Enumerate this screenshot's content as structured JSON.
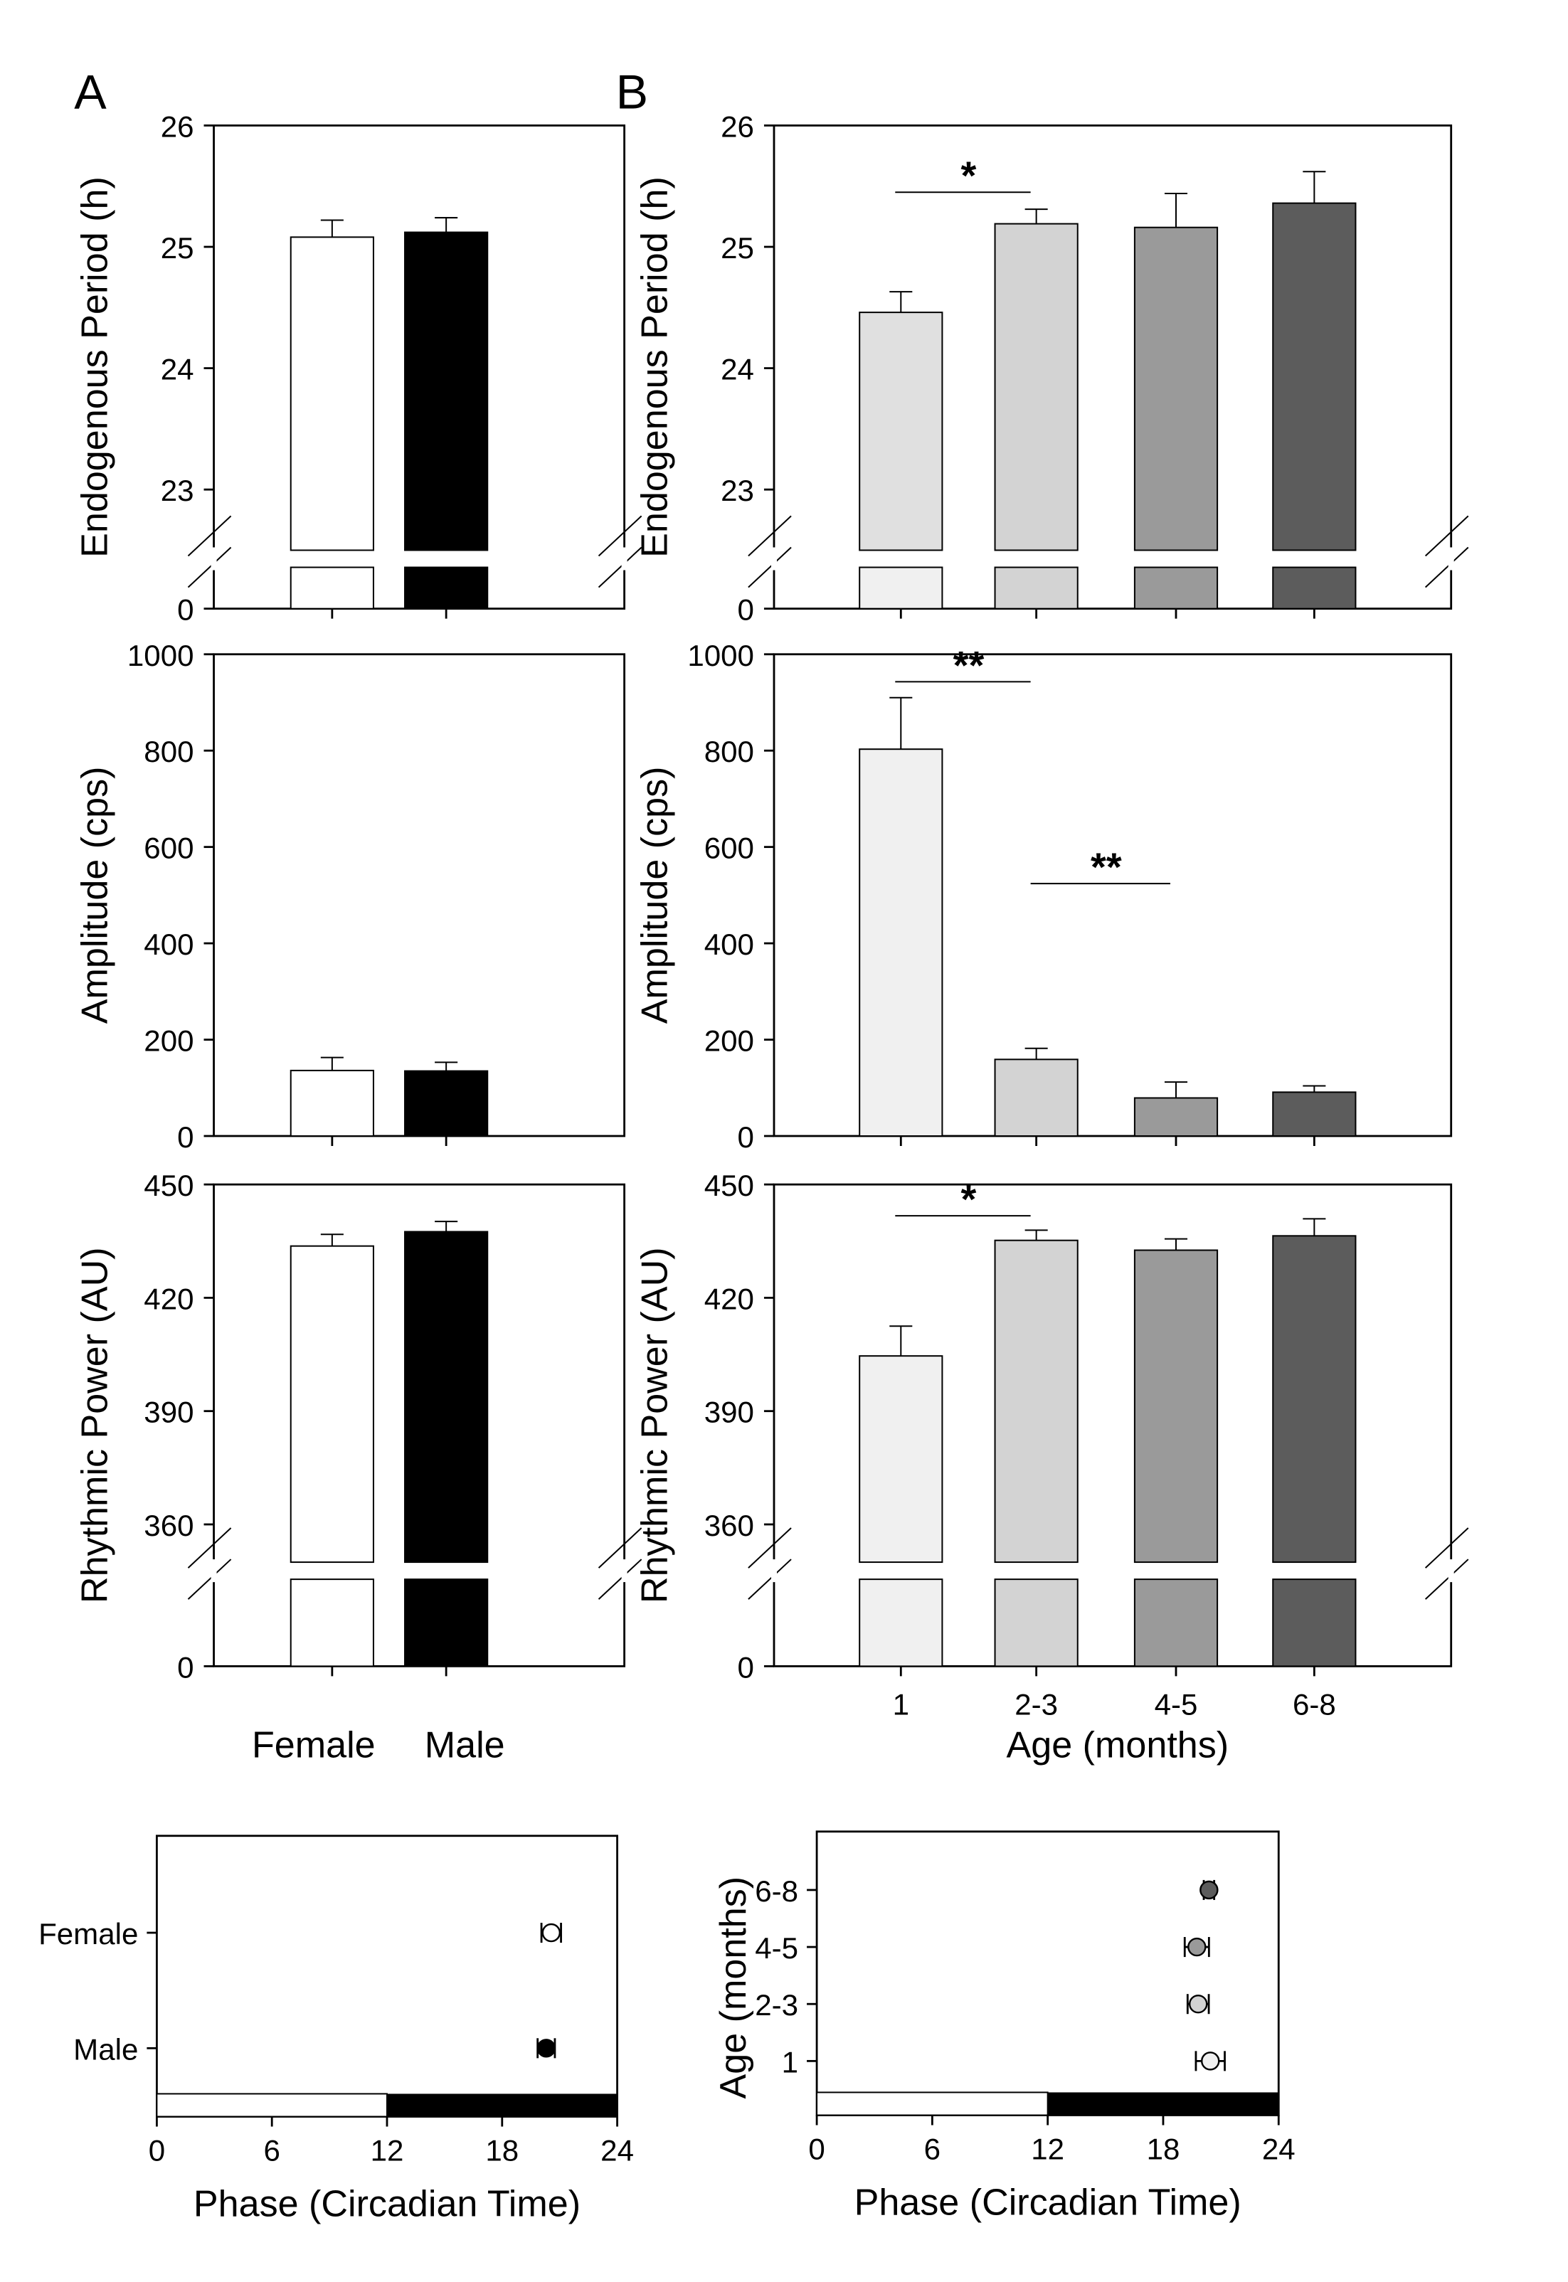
{
  "panel_labels": {
    "a": "A",
    "b": "B"
  },
  "colors": {
    "female": "#ffffff",
    "male": "#000000",
    "age_1": "#f0f0f0",
    "age_1_period_upper": "#e0e0e0",
    "age_2_3": "#d3d3d3",
    "age_4_5": "#9a9a9a",
    "age_6_8": "#5c5c5c",
    "light_phase": "#ffffff",
    "dark_phase": "#000000"
  },
  "labels": {
    "sex_xlabel_female": "Female",
    "sex_xlabel_male": "Male",
    "age_xlabel": "Age (months)",
    "phase_xlabel": "Phase (Circadian Time)",
    "phase_age_ylabel": "Age (months)"
  },
  "chart_data": [
    {
      "id": "A-period",
      "type": "bar",
      "panel": "A",
      "ylabel": "Endogenous Period (h)",
      "categories": [
        "Female",
        "Male"
      ],
      "values": [
        25.08,
        25.12
      ],
      "errors": [
        0.14,
        0.12
      ],
      "ylim": [
        22.5,
        26
      ],
      "yticks": [
        0,
        23,
        24,
        25,
        26
      ],
      "axis_break": true,
      "significance": []
    },
    {
      "id": "B-period",
      "type": "bar",
      "panel": "B",
      "ylabel": "Endogenous Period (h)",
      "categories": [
        "1",
        "2-3",
        "4-5",
        "6-8"
      ],
      "values": [
        24.46,
        25.19,
        25.16,
        25.36
      ],
      "errors": [
        0.17,
        0.12,
        0.28,
        0.26
      ],
      "ylim": [
        22.5,
        26
      ],
      "yticks": [
        0,
        23,
        24,
        25,
        26
      ],
      "axis_break": true,
      "significance": [
        {
          "from": "1",
          "to": "2-3",
          "label": "*",
          "y": 25.45
        }
      ]
    },
    {
      "id": "A-amplitude",
      "type": "bar",
      "panel": "A",
      "ylabel": "Amplitude (cps)",
      "categories": [
        "Female",
        "Male"
      ],
      "values": [
        136,
        135
      ],
      "errors": [
        27,
        18
      ],
      "ylim": [
        0,
        1000
      ],
      "yticks": [
        0,
        200,
        400,
        600,
        800,
        1000
      ],
      "axis_break": false,
      "significance": []
    },
    {
      "id": "B-amplitude",
      "type": "bar",
      "panel": "B",
      "ylabel": "Amplitude (cps)",
      "categories": [
        "1",
        "2-3",
        "4-5",
        "6-8"
      ],
      "values": [
        803,
        159,
        79,
        91
      ],
      "errors": [
        107,
        23,
        33,
        13
      ],
      "ylim": [
        0,
        1000
      ],
      "yticks": [
        0,
        200,
        400,
        600,
        800,
        1000
      ],
      "axis_break": false,
      "significance": [
        {
          "from": "1",
          "to": "2-3",
          "label": "**",
          "y": 943
        },
        {
          "from": "2-3",
          "to": "4-5",
          "label": "**",
          "y": 524
        }
      ]
    },
    {
      "id": "A-power",
      "type": "bar",
      "panel": "A",
      "ylabel": "Rhythmic Power (AU)",
      "categories": [
        "Female",
        "Male"
      ],
      "values": [
        433.7,
        437.5
      ],
      "errors": [
        3.1,
        2.7
      ],
      "ylim": [
        350,
        450
      ],
      "yticks": [
        0,
        360,
        390,
        420,
        450
      ],
      "axis_break": true,
      "xlabels": [
        "Female",
        "Male"
      ],
      "significance": []
    },
    {
      "id": "B-power",
      "type": "bar",
      "panel": "B",
      "ylabel": "Rhythmic Power (AU)",
      "categories": [
        "1",
        "2-3",
        "4-5",
        "6-8"
      ],
      "values": [
        404.6,
        435.2,
        432.6,
        436.4
      ],
      "errors": [
        7.9,
        2.7,
        3.0,
        4.5
      ],
      "ylim": [
        350,
        450
      ],
      "yticks": [
        0,
        360,
        390,
        420,
        450
      ],
      "axis_break": true,
      "xlabel": "Age (months)",
      "significance": [
        {
          "from": "1",
          "to": "2-3",
          "label": "*",
          "y": 441.7
        }
      ]
    },
    {
      "id": "A-phase",
      "type": "scatter",
      "panel": "A",
      "xlabel": "Phase (Circadian Time)",
      "ylabel": "",
      "categories": [
        "Female",
        "Male"
      ],
      "x": [
        20.56,
        20.3
      ],
      "xerr": [
        0.51,
        0.45
      ],
      "xlim": [
        0,
        24
      ],
      "xticks": [
        0,
        6,
        12,
        18,
        24
      ],
      "light_dark_bar": {
        "light": [
          0,
          12
        ],
        "dark": [
          12,
          24
        ]
      }
    },
    {
      "id": "B-phase",
      "type": "scatter",
      "panel": "B",
      "xlabel": "Phase (Circadian Time)",
      "ylabel": "Age (months)",
      "categories": [
        "1",
        "2-3",
        "4-5",
        "6-8"
      ],
      "x": [
        20.45,
        19.82,
        19.75,
        20.38
      ],
      "xerr": [
        0.75,
        0.55,
        0.63,
        0.27
      ],
      "xlim": [
        0,
        24
      ],
      "xticks": [
        0,
        6,
        12,
        18,
        24
      ],
      "light_dark_bar": {
        "light": [
          0,
          12
        ],
        "dark": [
          12,
          24
        ]
      }
    }
  ]
}
